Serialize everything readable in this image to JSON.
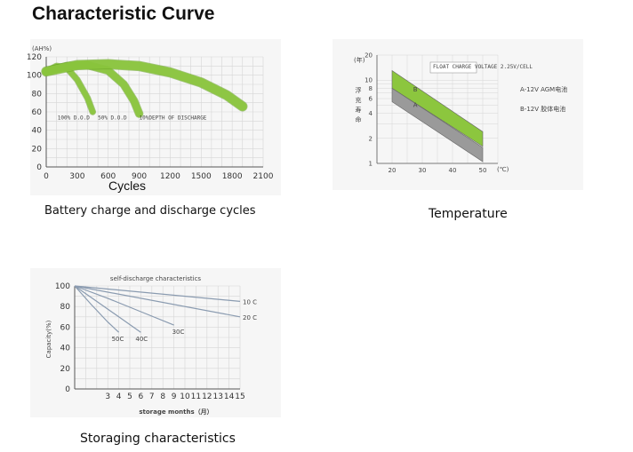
{
  "page": {
    "title": "Characteristic Curve"
  },
  "colors": {
    "green": "#8cc63e",
    "gray": "#9a9a9a",
    "grid": "#d6d6d6",
    "axis": "#555555"
  },
  "captions": {
    "cycles": "Battery charge and discharge cycles",
    "temperature": "Temperature",
    "storage": "Storaging  characteristics"
  },
  "chart_data": [
    {
      "id": "cycle_life",
      "type": "line",
      "title": "",
      "ylabel": "(AH%)",
      "xlabel": "Cycles",
      "xlim": [
        0,
        2100
      ],
      "ylim": [
        0,
        120
      ],
      "xticks": [
        "0",
        "300",
        "600",
        "900",
        "1200",
        "1500",
        "1800",
        "2100"
      ],
      "yticks": [
        "0",
        "20",
        "40",
        "60",
        "80",
        "100",
        "120"
      ],
      "series": [
        {
          "label": "100% D.O.D",
          "x": [
            0,
            100,
            200,
            300,
            400,
            450
          ],
          "y": [
            104,
            110,
            108,
            95,
            75,
            60
          ]
        },
        {
          "label": "50% D.O.D",
          "x": [
            0,
            200,
            400,
            600,
            750,
            850,
            900
          ],
          "y": [
            104,
            110,
            111,
            105,
            90,
            72,
            58
          ]
        },
        {
          "label": "10%DEPTH OF DISCHARGE",
          "x": [
            0,
            300,
            600,
            900,
            1200,
            1500,
            1750,
            1900
          ],
          "y": [
            104,
            111,
            112,
            110,
            103,
            92,
            78,
            66
          ]
        }
      ]
    },
    {
      "id": "temperature_life",
      "type": "area",
      "ylabel": "浮充寿命",
      "yunit": "(年)",
      "xunit": "(℃)",
      "note": "FLOAT CHARGE VOLTAGE 2.25V/CELL",
      "xlim": [
        15,
        55
      ],
      "ylim": [
        0,
        20
      ],
      "xticks": [
        "20",
        "30",
        "40",
        "50"
      ],
      "yticks": [
        "1",
        "2",
        "4",
        "6",
        "8",
        "10",
        "20"
      ],
      "legend": [
        "A-12V AGM电池",
        "B-12V 胶体电池"
      ],
      "bands": [
        {
          "label": "B",
          "x": [
            20,
            50
          ],
          "low": [
            8,
            1.6
          ],
          "high": [
            13,
            2.4
          ]
        },
        {
          "label": "A",
          "x": [
            20,
            50
          ],
          "low": [
            5.5,
            1.05
          ],
          "high": [
            8,
            1.55
          ]
        }
      ]
    },
    {
      "id": "self_discharge",
      "type": "line",
      "title": "self-discharge characteristics",
      "ylabel": "Capacity(%)",
      "xlabel": "storage months（月）",
      "xlim": [
        0,
        15
      ],
      "ylim": [
        0,
        100
      ],
      "xticks": [
        "3",
        "4",
        "5",
        "6",
        "7",
        "8",
        "9",
        "10",
        "11",
        "12",
        "13",
        "14",
        "15"
      ],
      "yticks": [
        "0",
        "20",
        "40",
        "60",
        "80",
        "100"
      ],
      "series": [
        {
          "label": "10 C",
          "x": [
            0,
            15
          ],
          "y": [
            100,
            85
          ]
        },
        {
          "label": "20 C",
          "x": [
            0,
            15
          ],
          "y": [
            100,
            70
          ]
        },
        {
          "label": "30C",
          "x": [
            0,
            3,
            6,
            9
          ],
          "y": [
            100,
            88,
            75,
            62
          ]
        },
        {
          "label": "40C",
          "x": [
            0,
            2,
            4,
            6
          ],
          "y": [
            100,
            85,
            70,
            55
          ]
        },
        {
          "label": "50C",
          "x": [
            0,
            1.5,
            3,
            4
          ],
          "y": [
            100,
            82,
            65,
            55
          ]
        }
      ]
    }
  ]
}
